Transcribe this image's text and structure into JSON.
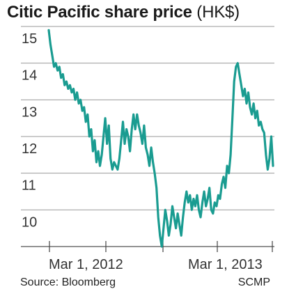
{
  "chart_data": {
    "type": "line",
    "title": "Citic Pacific share price",
    "title_unit": "(HK$)",
    "ylim": [
      9,
      15
    ],
    "yticks": [
      15,
      14,
      13,
      12,
      11,
      10
    ],
    "xticks": [
      "Mar 1, 2012",
      "Mar 1, 2013"
    ],
    "grid": "horizontal",
    "legend": "none",
    "line_color": "#1a9c91",
    "series": [
      {
        "values": [
          14.9,
          14.5,
          14.2,
          13.9,
          14.0,
          13.8,
          13.9,
          13.6,
          13.7,
          13.4,
          13.5,
          13.3,
          13.4,
          13.2,
          13.3,
          13.0,
          13.2,
          12.9,
          13.0,
          12.7,
          12.8,
          12.4,
          12.6,
          12.0,
          12.2,
          11.6,
          11.9,
          11.3,
          11.6,
          11.2,
          11.5,
          12.0,
          12.5,
          11.8,
          12.3,
          11.4,
          11.1,
          11.3,
          11.2,
          11.1,
          11.4,
          11.9,
          12.4,
          11.8,
          12.2,
          12.0,
          11.6,
          12.2,
          12.6,
          12.2,
          12.6,
          12.3,
          12.1,
          11.8,
          12.3,
          11.7,
          11.5,
          11.2,
          11.7,
          11.3,
          11.0,
          10.6,
          9.8,
          9.3,
          9.0,
          9.5,
          10.0,
          9.7,
          9.3,
          9.6,
          10.1,
          9.8,
          9.5,
          9.9,
          9.6,
          9.3,
          9.8,
          10.2,
          10.5,
          10.2,
          10.4,
          10.0,
          10.3,
          10.1,
          10.4,
          10.0,
          9.8,
          10.2,
          10.5,
          10.1,
          10.3,
          10.6,
          10.0,
          9.9,
          10.2,
          10.1,
          10.4,
          10.3,
          10.7,
          10.9,
          10.6,
          11.2,
          11.0,
          11.5,
          12.5,
          13.5,
          13.9,
          14.0,
          13.7,
          13.4,
          13.1,
          13.3,
          12.9,
          13.2,
          12.8,
          12.6,
          12.9,
          12.5,
          12.7,
          12.3,
          12.4,
          12.2,
          12.1,
          11.5,
          11.1,
          11.4,
          12.0,
          11.2
        ]
      }
    ]
  },
  "footer": {
    "source": "Source: Bloomberg",
    "credit": "SCMP"
  }
}
